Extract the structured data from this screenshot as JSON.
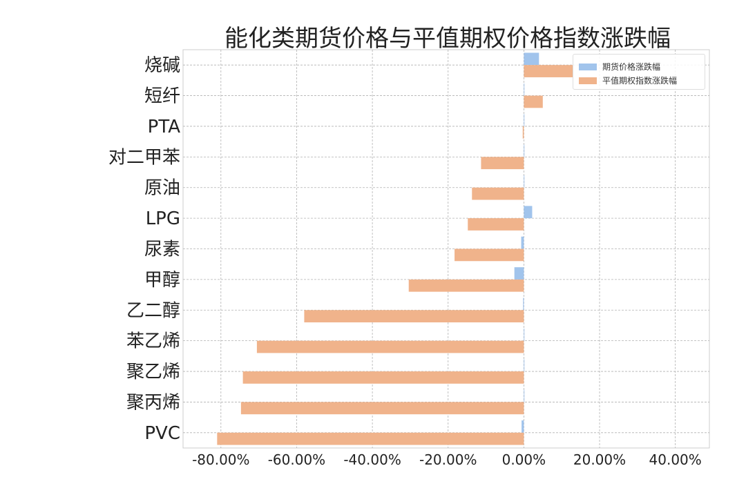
{
  "chart_data": {
    "type": "bar",
    "orientation": "horizontal",
    "title": "能化类期货价格与平值期权价格指数涨跌幅",
    "xlabel": "",
    "ylabel": "",
    "categories": [
      "烧碱",
      "短纤",
      "PTA",
      "对二甲苯",
      "原油",
      "LPG",
      "尿素",
      "甲醇",
      "乙二醇",
      "苯乙烯",
      "聚乙烯",
      "聚丙烯",
      "PVC"
    ],
    "series": [
      {
        "name": "期货价格涨跌幅",
        "color": "#a1c4ec",
        "values": [
          0.04,
          0.0,
          0.0,
          0.0,
          0.0,
          0.022,
          -0.007,
          -0.025,
          -0.002,
          0.0,
          0.0,
          0.0,
          -0.006
        ]
      },
      {
        "name": "平值期权指数涨跌幅",
        "color": "#f0b38b",
        "values": [
          0.13,
          0.05,
          -0.003,
          -0.113,
          -0.137,
          -0.148,
          -0.183,
          -0.304,
          -0.58,
          -0.705,
          -0.742,
          -0.747,
          -0.81
        ]
      }
    ],
    "xlim": [
      -0.9,
      0.49
    ],
    "xticks": [
      -0.8,
      -0.6,
      -0.4,
      -0.2,
      0.0,
      0.2,
      0.4
    ],
    "xtick_labels": [
      "-80.00%",
      "-60.00%",
      "-40.00%",
      "-20.00%",
      "0.00%",
      "20.00%",
      "40.00%"
    ],
    "grid": true,
    "legend_position": "top-right"
  }
}
